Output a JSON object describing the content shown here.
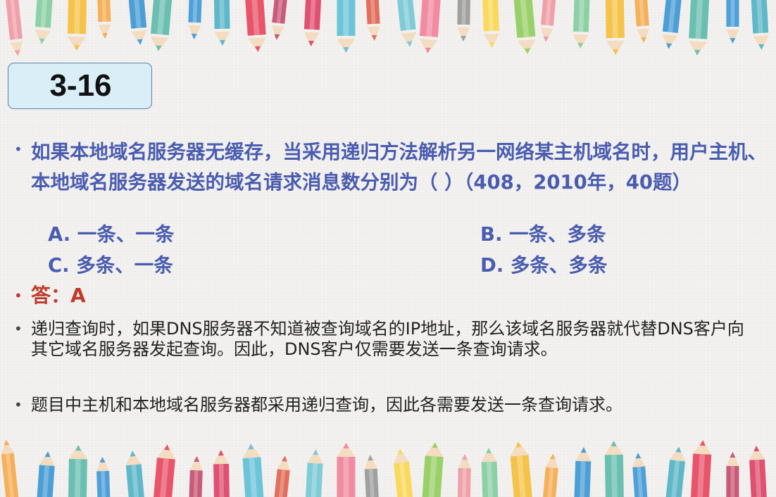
{
  "slide": {
    "number": "3-16"
  },
  "question": {
    "text": "如果本地域名服务器无缓存，当采用递归方法解析另一网络某主机域名时，用户主机、本地域名服务器发送的域名请求消息数分别为（ ）（408，2010年，40题）",
    "options": [
      "A. 一条、一条",
      "B. 一条、多条",
      "C. 多条、一条",
      "D. 多条、多条"
    ]
  },
  "answer": {
    "text": "答：A"
  },
  "explanations": [
    "递归查询时，如果DNS服务器不知道被查询域名的IP地址，那么该域名服务器就代替DNS客户向其它域名服务器发起查询。因此，DNS客户仅需要发送一条查询请求。",
    "题目中主机和本地域名服务器都采用递归查询，因此各需要发送一条查询请求。"
  ],
  "colors": {
    "question": "#4a5cb0",
    "answer": "#c0392b",
    "title_box": "#d9eef6",
    "title_border": "#5b7fb5"
  }
}
